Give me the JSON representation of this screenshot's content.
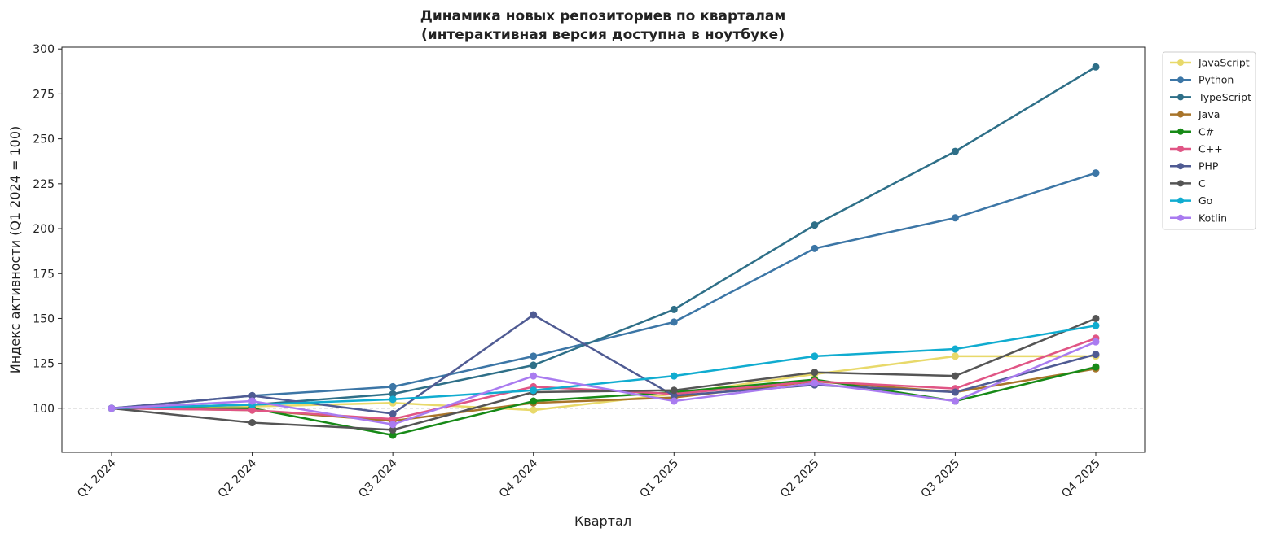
{
  "chart_data": {
    "type": "line",
    "title": "Динамика новых репозиториев по кварталам",
    "subtitle": "(интерактивная версия доступна в ноутбуке)",
    "xlabel": "Квартал",
    "ylabel": "Индекс активности (Q1 2024 = 100)",
    "categories": [
      "Q1 2024",
      "Q2 2024",
      "Q3 2024",
      "Q4 2024",
      "Q1 2025",
      "Q2 2025",
      "Q3 2025",
      "Q4 2025"
    ],
    "ylim": [
      75.5,
      301
    ],
    "yticks": [
      100,
      125,
      150,
      175,
      200,
      225,
      250,
      275,
      300
    ],
    "reference_line": 100,
    "grid": false,
    "legend_position": "outside-right",
    "series": [
      {
        "name": "JavaScript",
        "color": "#e8d96a",
        "values": [
          100,
          101,
          103,
          99,
          108,
          119,
          129,
          129
        ]
      },
      {
        "name": "Python",
        "color": "#3c76a6",
        "values": [
          100,
          107,
          112,
          129,
          148,
          189,
          206,
          231
        ]
      },
      {
        "name": "TypeScript",
        "color": "#2e6f88",
        "values": [
          100,
          102,
          108,
          124,
          155,
          202,
          243,
          290
        ]
      },
      {
        "name": "Java",
        "color": "#a8742a",
        "values": [
          100,
          99,
          93,
          103,
          106,
          115,
          109,
          122
        ]
      },
      {
        "name": "C#",
        "color": "#178a17",
        "values": [
          100,
          100,
          85,
          104,
          109,
          116,
          104,
          123
        ]
      },
      {
        "name": "C++",
        "color": "#e05585",
        "values": [
          100,
          99,
          94,
          112,
          108,
          115,
          111,
          139
        ]
      },
      {
        "name": "PHP",
        "color": "#4f5b93",
        "values": [
          100,
          107,
          97,
          152,
          107,
          113,
          109,
          130
        ]
      },
      {
        "name": "C",
        "color": "#555555",
        "values": [
          100,
          92,
          88,
          109,
          110,
          120,
          118,
          150
        ]
      },
      {
        "name": "Go",
        "color": "#10acd0",
        "values": [
          100,
          102,
          105,
          110,
          118,
          129,
          133,
          146
        ]
      },
      {
        "name": "Kotlin",
        "color": "#a97bf0",
        "values": [
          100,
          104,
          91,
          118,
          104,
          114,
          104,
          137
        ]
      }
    ]
  }
}
